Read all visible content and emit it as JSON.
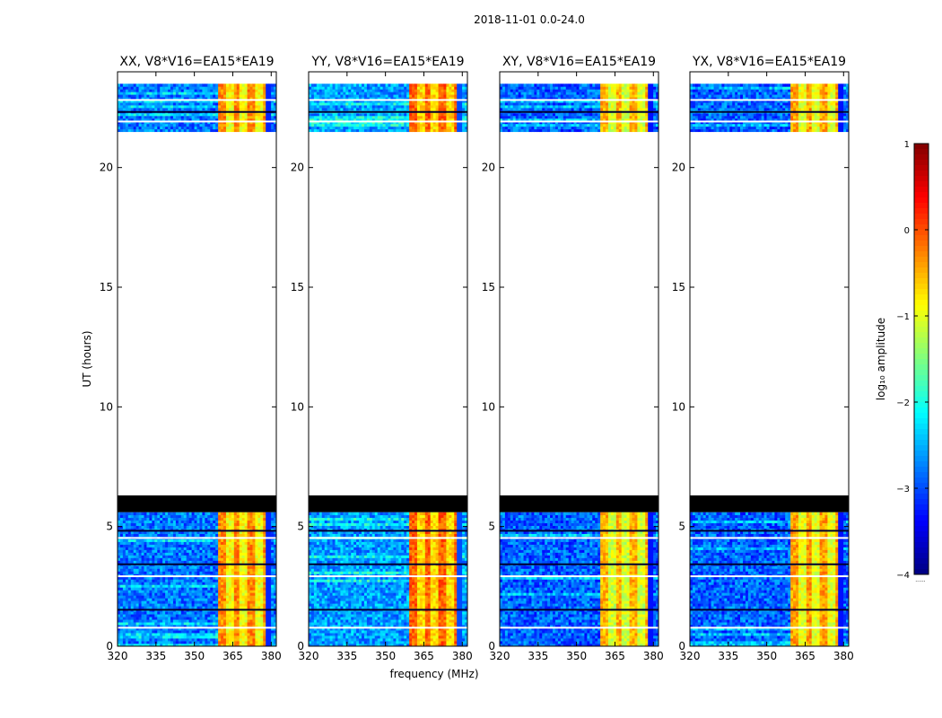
{
  "figure": {
    "suptitle": "2018-11-01 0.0-24.0",
    "xlabel": "frequency (MHz)",
    "ylabel": "UT (hours)",
    "colorbar_label": "log₁₀ amplitude",
    "colorbar_footnote": "......"
  },
  "chart_data": [
    {
      "type": "heatmap",
      "title": "XX, V8*V16=EA15*EA19",
      "xlim": [
        320,
        382
      ],
      "ylim": [
        0,
        24
      ],
      "xticks": [
        320,
        335,
        350,
        365,
        380
      ],
      "xtick_labels": [
        "320",
        "335",
        "350",
        "365",
        "380"
      ],
      "yticks": [
        0,
        5,
        10,
        15,
        20
      ],
      "ytick_labels": [
        "0",
        "5",
        "10",
        "15",
        "20"
      ],
      "data_time_ranges": [
        [
          0,
          5.6
        ],
        [
          21.5,
          23.5
        ]
      ],
      "masked_time_range": [
        6.3,
        5.6
      ],
      "bright_band_mhz": [
        359,
        378
      ],
      "bright_band_level": -0.5,
      "background_level": -2.8
    },
    {
      "type": "heatmap",
      "title": "YY, V8*V16=EA15*EA19",
      "xlim": [
        320,
        382
      ],
      "ylim": [
        0,
        24
      ],
      "xticks": [
        320,
        335,
        350,
        365,
        380
      ],
      "xtick_labels": [
        "320",
        "335",
        "350",
        "365",
        "380"
      ],
      "yticks": [
        0,
        5,
        10,
        15,
        20
      ],
      "ytick_labels": [
        "0",
        "5",
        "10",
        "15",
        "20"
      ],
      "data_time_ranges": [
        [
          0,
          5.6
        ],
        [
          21.5,
          23.5
        ]
      ],
      "masked_time_range": [
        6.3,
        5.6
      ],
      "bright_band_mhz": [
        359,
        378
      ],
      "bright_band_level": -0.3,
      "background_level": -2.6
    },
    {
      "type": "heatmap",
      "title": "XY, V8*V16=EA15*EA19",
      "xlim": [
        320,
        382
      ],
      "ylim": [
        0,
        24
      ],
      "xticks": [
        320,
        335,
        350,
        365,
        380
      ],
      "xtick_labels": [
        "320",
        "335",
        "350",
        "365",
        "380"
      ],
      "yticks": [
        0,
        5,
        10,
        15,
        20
      ],
      "ytick_labels": [
        "0",
        "5",
        "10",
        "15",
        "20"
      ],
      "data_time_ranges": [
        [
          0,
          5.6
        ],
        [
          21.5,
          23.5
        ]
      ],
      "masked_time_range": [
        6.3,
        5.6
      ],
      "bright_band_mhz": [
        359,
        378
      ],
      "bright_band_level": -0.7,
      "background_level": -2.9
    },
    {
      "type": "heatmap",
      "title": "YX, V8*V16=EA15*EA19",
      "xlim": [
        320,
        382
      ],
      "ylim": [
        0,
        24
      ],
      "xticks": [
        320,
        335,
        350,
        365,
        380
      ],
      "xtick_labels": [
        "320",
        "335",
        "350",
        "365",
        "380"
      ],
      "yticks": [
        0,
        5,
        10,
        15,
        20
      ],
      "ytick_labels": [
        "0",
        "5",
        "10",
        "15",
        "20"
      ],
      "data_time_ranges": [
        [
          0,
          5.6
        ],
        [
          21.5,
          23.5
        ]
      ],
      "masked_time_range": [
        6.3,
        5.6
      ],
      "bright_band_mhz": [
        359,
        378
      ],
      "bright_band_level": -0.6,
      "background_level": -2.9
    }
  ],
  "colorbar": {
    "min": -4,
    "max": 1,
    "ticks": [
      1,
      0,
      -1,
      -2,
      -3,
      -4
    ],
    "tick_labels": [
      "1",
      "0",
      "−1",
      "−2",
      "−3",
      "−4"
    ]
  }
}
